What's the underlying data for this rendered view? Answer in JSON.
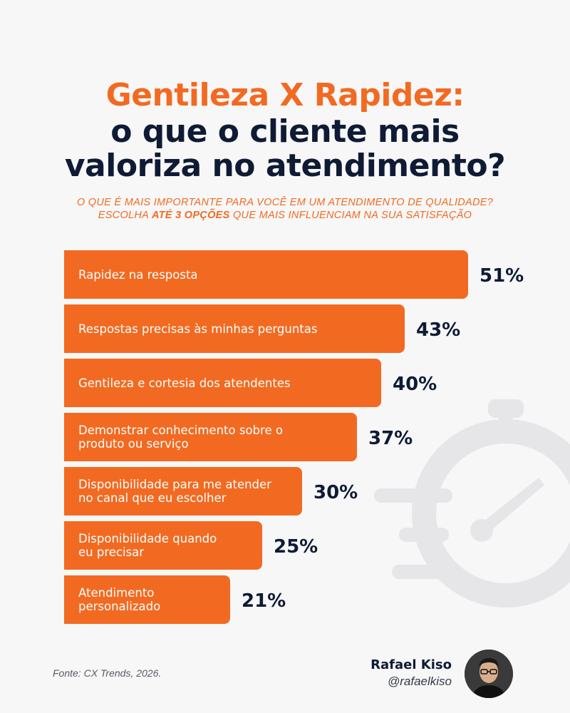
{
  "header": {
    "title_line1": "Gentileza X Rapidez:",
    "title_line2": "o que o cliente mais",
    "title_line3": "valoriza no atendimento?",
    "subtitle_line1": "O que é mais importante para você em um atendimento de qualidade?",
    "subtitle_line2_pre": "Escolha ",
    "subtitle_line2_bold": "até 3 opções",
    "subtitle_line2_post": " que mais influenciam na sua satisfação"
  },
  "chart_data": {
    "type": "bar",
    "orientation": "horizontal",
    "categories": [
      "Rapidez na resposta",
      "Respostas precisas às minhas perguntas",
      "Gentileza e cortesia dos atendentes",
      "Demonstrar conhecimento sobre o produto ou serviço",
      "Disponibilidade para me atender no canal que eu escolher",
      "Disponibilidade quando eu precisar",
      "Atendimento personalizado"
    ],
    "label_lines": [
      [
        "Rapidez na resposta"
      ],
      [
        "Respostas precisas às minhas perguntas"
      ],
      [
        "Gentileza e cortesia dos atendentes"
      ],
      [
        "Demonstrar conhecimento sobre o",
        "produto ou serviço"
      ],
      [
        "Disponibilidade para me atender",
        "no canal que eu escolher"
      ],
      [
        "Disponibilidade quando",
        "eu precisar"
      ],
      [
        "Atendimento",
        "personalizado"
      ]
    ],
    "values": [
      51,
      43,
      40,
      37,
      30,
      25,
      21
    ],
    "value_labels": [
      "51%",
      "43%",
      "40%",
      "37%",
      "30%",
      "25%",
      "21%"
    ],
    "unit": "%",
    "bar_color": "#f26a21",
    "value_color": "#0f1b35",
    "grid": false,
    "legend": "none"
  },
  "footer": {
    "source": "Fonte: CX Trends, 2026.",
    "author_name": "Rafael Kiso",
    "author_handle": "@rafaelkiso"
  },
  "colors": {
    "accent": "#f26a21",
    "navy": "#0f1b35",
    "background": "#f7f7f7"
  },
  "icons": {
    "watermark": "stopwatch-icon"
  }
}
